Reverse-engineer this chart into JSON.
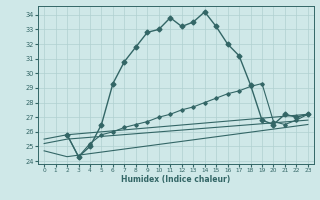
{
  "xlabel": "Humidex (Indice chaleur)",
  "background_color": "#cfe8e8",
  "grid_color": "#b0d0d0",
  "line_color": "#336666",
  "xlim": [
    -0.5,
    23.5
  ],
  "ylim": [
    23.8,
    34.6
  ],
  "xticks": [
    0,
    1,
    2,
    3,
    4,
    5,
    6,
    7,
    8,
    9,
    10,
    11,
    12,
    13,
    14,
    15,
    16,
    17,
    18,
    19,
    20,
    21,
    22,
    23
  ],
  "yticks": [
    24,
    25,
    26,
    27,
    28,
    29,
    30,
    31,
    32,
    33,
    34
  ],
  "series1_x": [
    2,
    3,
    4,
    5,
    6,
    7,
    8,
    9,
    10,
    11,
    12,
    13,
    14,
    15,
    16,
    17,
    18,
    19,
    20,
    21,
    22,
    23
  ],
  "series1_y": [
    25.8,
    24.3,
    25.0,
    26.5,
    29.3,
    30.8,
    31.8,
    32.8,
    33.0,
    33.8,
    33.2,
    33.5,
    34.2,
    33.2,
    32.0,
    31.2,
    29.2,
    26.8,
    26.5,
    27.2,
    27.0,
    27.2
  ],
  "series2_x": [
    2,
    3,
    4,
    5,
    6,
    7,
    8,
    9,
    10,
    11,
    12,
    13,
    14,
    15,
    16,
    17,
    18,
    19,
    20,
    21,
    22,
    23
  ],
  "series2_y": [
    25.8,
    24.3,
    25.2,
    25.8,
    26.0,
    26.3,
    26.5,
    26.7,
    27.0,
    27.2,
    27.5,
    27.7,
    28.0,
    28.3,
    28.6,
    28.8,
    29.1,
    29.3,
    26.7,
    26.5,
    26.8,
    27.2
  ],
  "series3_x": [
    0,
    2,
    23
  ],
  "series3_y": [
    25.5,
    25.8,
    27.2
  ],
  "series4_x": [
    0,
    2,
    23
  ],
  "series4_y": [
    25.2,
    25.5,
    26.8
  ],
  "series5_x": [
    0,
    2,
    23
  ],
  "series5_y": [
    24.7,
    24.3,
    26.5
  ]
}
